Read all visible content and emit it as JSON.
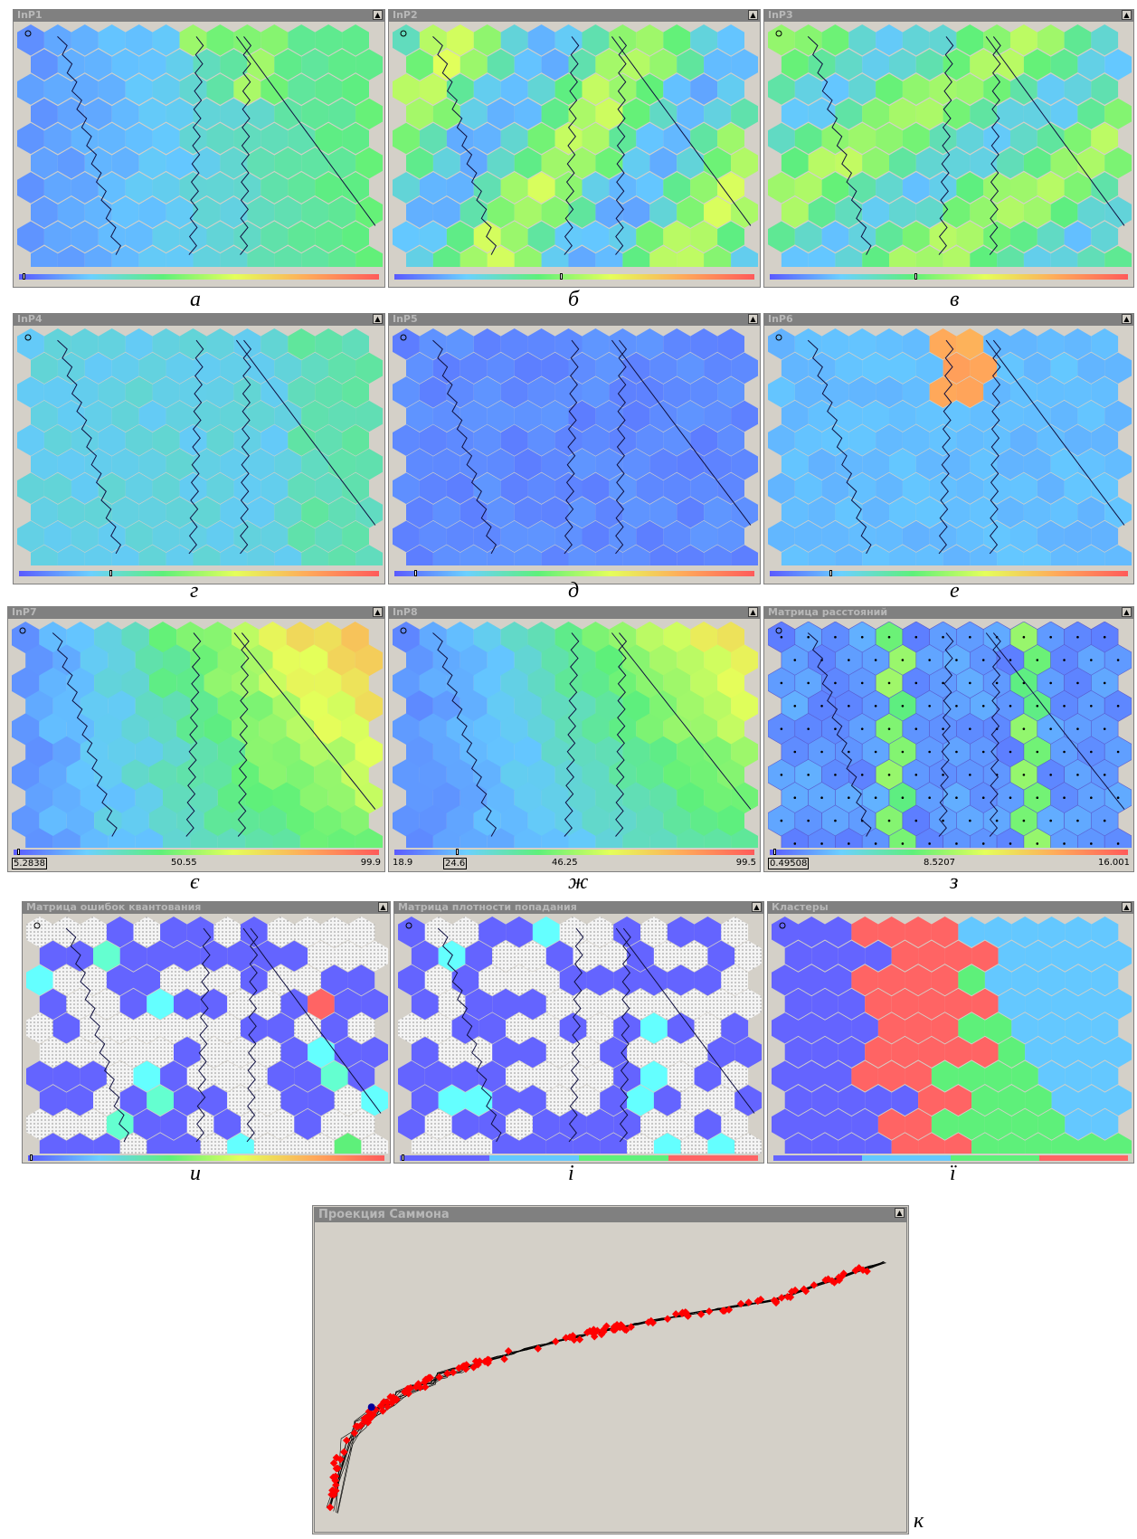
{
  "panels": [
    {
      "title": "InP1",
      "caption": "а"
    },
    {
      "title": "InP2",
      "caption": "б"
    },
    {
      "title": "InP3",
      "caption": "в"
    },
    {
      "title": "InP4",
      "caption": "г"
    },
    {
      "title": "InP5",
      "caption": "д"
    },
    {
      "title": "InP6",
      "caption": "е"
    },
    {
      "title": "InP7",
      "caption": "є",
      "scale_labels": [
        "5.2838",
        "50.55",
        "99.9"
      ]
    },
    {
      "title": "InP8",
      "caption": "ж",
      "scale_labels": [
        "18.9",
        "24.6",
        "46.25",
        "99.5"
      ]
    },
    {
      "title": "Матрица расстояний",
      "caption": "з",
      "scale_labels": [
        "0.49508",
        "8.5207",
        "16.001"
      ]
    },
    {
      "title": "Матрица ошибок квантования",
      "caption": "и"
    },
    {
      "title": "Матрица плотности попадания",
      "caption": "і"
    },
    {
      "title": "Кластеры",
      "caption": "ї"
    }
  ],
  "sammon": {
    "title": "Проекция Саммона",
    "caption": "к",
    "point_color": "#ff0000",
    "selected_point_color": "#000099"
  },
  "colors": {
    "window_bg": "#d4d0c8",
    "titlebar": "#808080",
    "cluster_blue": "#6464ff",
    "cluster_red": "#ff6464",
    "cluster_green": "#5ef07a",
    "cluster_cyan": "#64c8ff"
  }
}
